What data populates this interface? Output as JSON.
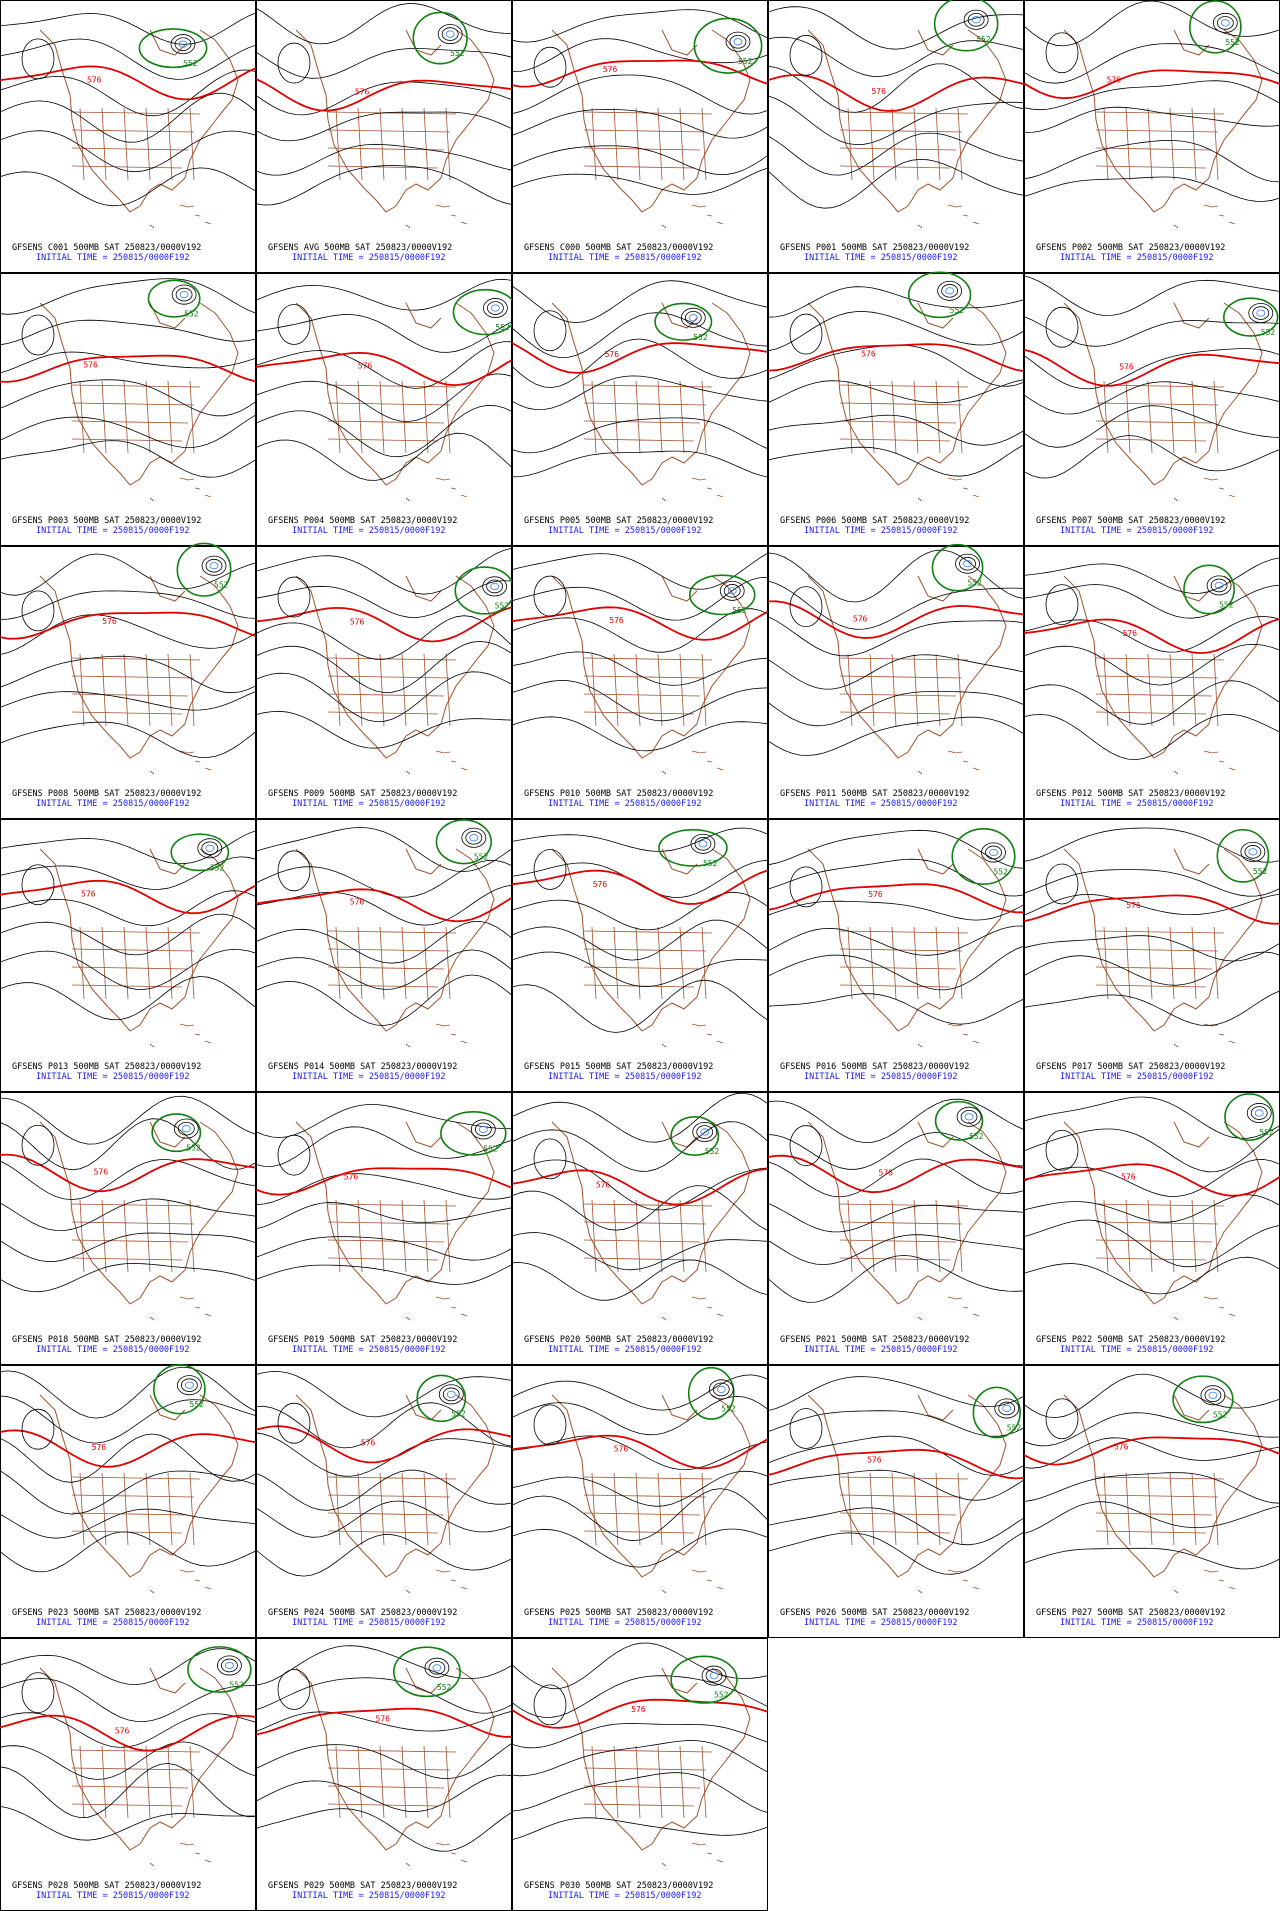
{
  "panels": [
    {
      "line1": "GFSENS C001 500MB SAT 250823/0000V192",
      "line2": "INITIAL TIME = 250815/0000F192",
      "labels": [
        "576",
        "552"
      ]
    },
    {
      "line1": "GFSENS AVG 500MB SAT 250823/0000V192",
      "line2": "INITIAL TIME = 250815/0000F192",
      "labels": [
        "576",
        "552"
      ]
    },
    {
      "line1": "GFSENS C000 500MB SAT 250823/0000V192",
      "line2": "INITIAL TIME = 250815/0000F192",
      "labels": [
        "576",
        "552"
      ]
    },
    {
      "line1": "GFSENS P001 500MB SAT 250823/0000V192",
      "line2": "INITIAL TIME = 250815/0000F192",
      "labels": [
        "576",
        "552"
      ]
    },
    {
      "line1": "GFSENS P002 500MB SAT 250823/0000V192",
      "line2": "INITIAL TIME = 250815/0000F192",
      "labels": [
        "576",
        "552"
      ]
    },
    {
      "line1": "GFSENS P003 500MB SAT 250823/0000V192",
      "line2": "INITIAL TIME = 250815/0000F192",
      "labels": [
        "576",
        "552"
      ]
    },
    {
      "line1": "GFSENS P004 500MB SAT 250823/0000V192",
      "line2": "INITIAL TIME = 250815/0000F192",
      "labels": [
        "576",
        "552"
      ]
    },
    {
      "line1": "GFSENS P005 500MB SAT 250823/0000V192",
      "line2": "INITIAL TIME = 250815/0000F192",
      "labels": [
        "576",
        "552"
      ]
    },
    {
      "line1": "GFSENS P006 500MB SAT 250823/0000V192",
      "line2": "INITIAL TIME = 250815/0000F192",
      "labels": [
        "576",
        "552"
      ]
    },
    {
      "line1": "GFSENS P007 500MB SAT 250823/0000V192",
      "line2": "INITIAL TIME = 250815/0000F192",
      "labels": [
        "576",
        "552"
      ]
    },
    {
      "line1": "GFSENS P008 500MB SAT 250823/0000V192",
      "line2": "INITIAL TIME = 250815/0000F192",
      "labels": [
        "576",
        "552"
      ]
    },
    {
      "line1": "GFSENS P009 500MB SAT 250823/0000V192",
      "line2": "INITIAL TIME = 250815/0000F192",
      "labels": [
        "576",
        "552"
      ]
    },
    {
      "line1": "GFSENS P010 500MB SAT 250823/0000V192",
      "line2": "INITIAL TIME = 250815/0000F192",
      "labels": [
        "576",
        "552"
      ]
    },
    {
      "line1": "GFSENS P011 500MB SAT 250823/0000V192",
      "line2": "INITIAL TIME = 250815/0000F192",
      "labels": [
        "576",
        "552"
      ]
    },
    {
      "line1": "GFSENS P012 500MB SAT 250823/0000V192",
      "line2": "INITIAL TIME = 250815/0000F192",
      "labels": [
        "576",
        "552"
      ]
    },
    {
      "line1": "GFSENS P013 500MB SAT 250823/0000V192",
      "line2": "INITIAL TIME = 250815/0000F192",
      "labels": [
        "576",
        "552"
      ]
    },
    {
      "line1": "GFSENS P014 500MB SAT 250823/0000V192",
      "line2": "INITIAL TIME = 250815/0000F192",
      "labels": [
        "576",
        "552"
      ]
    },
    {
      "line1": "GFSENS P015 500MB SAT 250823/0000V192",
      "line2": "INITIAL TIME = 250815/0000F192",
      "labels": [
        "576",
        "552"
      ]
    },
    {
      "line1": "GFSENS P016 500MB SAT 250823/0000V192",
      "line2": "INITIAL TIME = 250815/0000F192",
      "labels": [
        "576",
        "552"
      ]
    },
    {
      "line1": "GFSENS P017 500MB SAT 250823/0000V192",
      "line2": "INITIAL TIME = 250815/0000F192",
      "labels": [
        "576",
        "552"
      ]
    },
    {
      "line1": "GFSENS P018 500MB SAT 250823/0000V192",
      "line2": "INITIAL TIME = 250815/0000F192",
      "labels": [
        "576",
        "552"
      ]
    },
    {
      "line1": "GFSENS P019 500MB SAT 250823/0000V192",
      "line2": "INITIAL TIME = 250815/0000F192",
      "labels": [
        "576",
        "552"
      ]
    },
    {
      "line1": "GFSENS P020 500MB SAT 250823/0000V192",
      "line2": "INITIAL TIME = 250815/0000F192",
      "labels": [
        "576",
        "552"
      ]
    },
    {
      "line1": "GFSENS P021 500MB SAT 250823/0000V192",
      "line2": "INITIAL TIME = 250815/0000F192",
      "labels": [
        "576",
        "552"
      ]
    },
    {
      "line1": "GFSENS P022 500MB SAT 250823/0000V192",
      "line2": "INITIAL TIME = 250815/0000F192",
      "labels": [
        "576",
        "552"
      ]
    },
    {
      "line1": "GFSENS P023 500MB SAT 250823/0000V192",
      "line2": "INITIAL TIME = 250815/0000F192",
      "labels": [
        "576",
        "552"
      ]
    },
    {
      "line1": "GFSENS P024 500MB SAT 250823/0000V192",
      "line2": "INITIAL TIME = 250815/0000F192",
      "labels": [
        "576",
        "552"
      ]
    },
    {
      "line1": "GFSENS P025 500MB SAT 250823/0000V192",
      "line2": "INITIAL TIME = 250815/0000F192",
      "labels": [
        "576",
        "552"
      ]
    },
    {
      "line1": "GFSENS P026 500MB SAT 250823/0000V192",
      "line2": "INITIAL TIME = 250815/0000F192",
      "labels": [
        "576",
        "552"
      ]
    },
    {
      "line1": "GFSENS P027 500MB SAT 250823/0000V192",
      "line2": "INITIAL TIME = 250815/0000F192",
      "labels": [
        "576",
        "552"
      ]
    },
    {
      "line1": "GFSENS P028 500MB SAT 250823/0000V192",
      "line2": "INITIAL TIME = 250815/0000F192",
      "labels": [
        "576",
        "552"
      ]
    },
    {
      "line1": "GFSENS P029 500MB SAT 250823/0000V192",
      "line2": "INITIAL TIME = 250815/0000F192",
      "labels": [
        "576",
        "552"
      ]
    },
    {
      "line1": "GFSENS P030 500MB SAT 250823/0000V192",
      "line2": "INITIAL TIME = 250815/0000F192",
      "labels": [
        "576",
        "552"
      ]
    }
  ]
}
